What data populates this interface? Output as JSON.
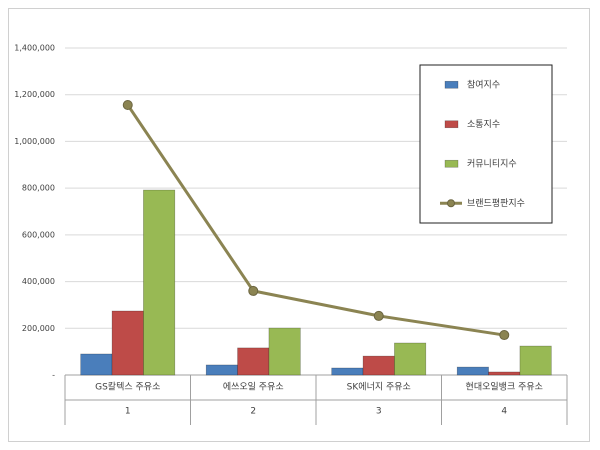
{
  "chart_data": {
    "type": "bar-line",
    "categories": [
      "GS칼텍스 주유소",
      "에쓰오일 주유소",
      "SK에너지 주유소",
      "현대오일뱅크 주유소"
    ],
    "category_numbers": [
      "1",
      "2",
      "3",
      "4"
    ],
    "series": [
      {
        "name": "참여지수",
        "type": "bar",
        "color": "#4a7ebb",
        "values": [
          90000,
          43000,
          30000,
          34000
        ]
      },
      {
        "name": "소통지수",
        "type": "bar",
        "color": "#be4b48",
        "values": [
          274000,
          116000,
          81000,
          13000
        ]
      },
      {
        "name": "커뮤니티지수",
        "type": "bar",
        "color": "#98b954",
        "values": [
          792000,
          201000,
          137000,
          124000
        ]
      },
      {
        "name": "브랜드평판지수",
        "type": "line",
        "color": "#8b8452",
        "values": [
          1156000,
          360000,
          253000,
          171000
        ]
      }
    ],
    "ylim": [
      0,
      1400000
    ],
    "yticks": [
      {
        "value": 0,
        "label": "-"
      },
      {
        "value": 200000,
        "label": "200,000"
      },
      {
        "value": 400000,
        "label": "400,000"
      },
      {
        "value": 600000,
        "label": "600,000"
      },
      {
        "value": 800000,
        "label": "800,000"
      },
      {
        "value": 1000000,
        "label": "1,000,000"
      },
      {
        "value": 1200000,
        "label": "1,200,000"
      },
      {
        "value": 1400000,
        "label": "1,400,000"
      }
    ],
    "grid": true,
    "legend": "upper-right"
  }
}
